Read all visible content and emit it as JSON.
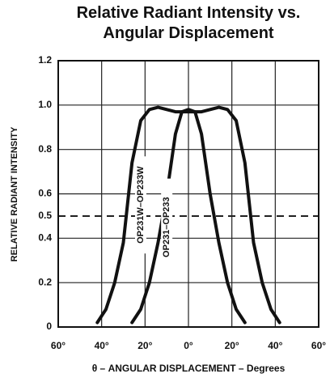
{
  "chart_data": {
    "type": "line",
    "title": "Relative Radiant Intensity vs. Angular Displacement",
    "xlabel": "θ – ANGULAR DISPLACEMENT – Degrees",
    "ylabel": "RELATIVE RADIANT INTENSITY",
    "x": [
      -42,
      -38,
      -34,
      -30,
      -26,
      -22,
      -18,
      -14,
      -10,
      -6,
      -3,
      0,
      3,
      6,
      10,
      14,
      18,
      22,
      26,
      30,
      34,
      38,
      42
    ],
    "series": [
      {
        "name": "OP231W–OP233W",
        "color": "#111111",
        "values": [
          0.02,
          0.08,
          0.2,
          0.38,
          0.74,
          0.93,
          0.98,
          0.99,
          0.98,
          0.97,
          0.97,
          0.97,
          0.97,
          0.97,
          0.98,
          0.99,
          0.98,
          0.93,
          0.74,
          0.38,
          0.2,
          0.08,
          0.02
        ]
      },
      {
        "name": "OP231–OP233",
        "color": "#111111",
        "values": [
          null,
          null,
          null,
          null,
          0.02,
          0.08,
          0.2,
          0.38,
          0.6,
          0.87,
          0.97,
          0.98,
          0.97,
          0.87,
          0.6,
          0.38,
          0.2,
          0.08,
          0.02,
          null,
          null,
          null,
          null
        ]
      }
    ],
    "xlim": [
      -60,
      60
    ],
    "xticks": [
      {
        "value": -60,
        "label": "60°"
      },
      {
        "value": -40,
        "label": "40°"
      },
      {
        "value": -20,
        "label": "20°"
      },
      {
        "value": 0,
        "label": "0°"
      },
      {
        "value": 20,
        "label": "20°"
      },
      {
        "value": 40,
        "label": "40°"
      },
      {
        "value": 60,
        "label": "60°"
      }
    ],
    "ylim": [
      0,
      1.2
    ],
    "yticks": [
      0,
      0.2,
      0.4,
      0.5,
      0.6,
      0.8,
      {
        "value": 1.0,
        "label": "1.0"
      },
      1.2
    ],
    "grid": true,
    "reference_line": 0.5
  }
}
